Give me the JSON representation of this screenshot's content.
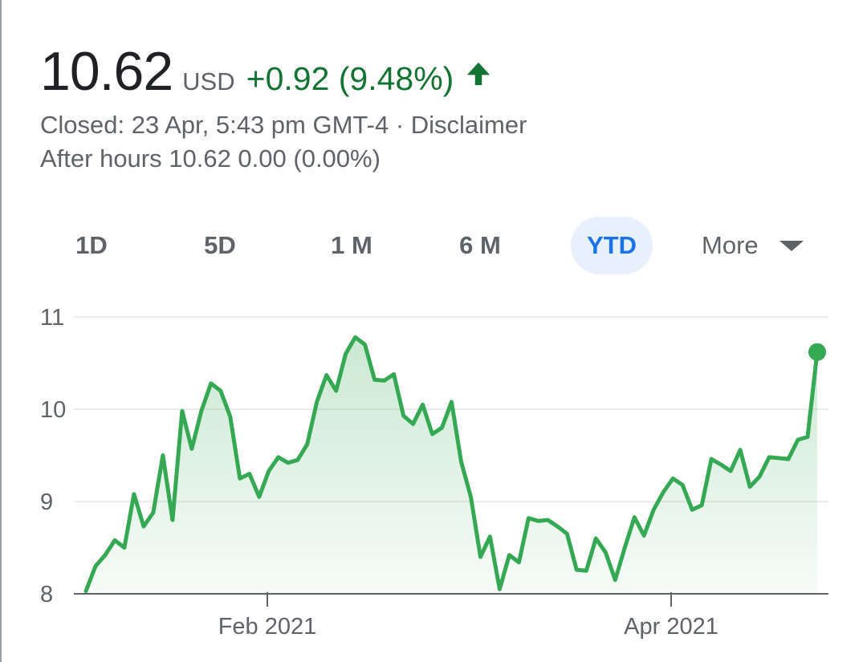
{
  "quote": {
    "price": "10.62",
    "currency": "USD",
    "change": "+0.92 (9.48%)",
    "direction_icon": "arrow-up-icon",
    "status_line": "Closed: 23 Apr, 5:43 pm GMT-4 · Disclaimer",
    "after_hours_line": "After hours 10.62 0.00 (0.00%)"
  },
  "colors": {
    "positive": "#137333",
    "line": "#34a853",
    "active_tab_bg": "#e8f0fe",
    "active_tab_text": "#1a73e8"
  },
  "tabs": [
    {
      "label": "1D",
      "active": false
    },
    {
      "label": "5D",
      "active": false
    },
    {
      "label": "1 M",
      "active": false
    },
    {
      "label": "6 M",
      "active": false
    },
    {
      "label": "YTD",
      "active": true
    }
  ],
  "more_label": "More",
  "more_icon": "caret-down-icon",
  "chart_data": {
    "type": "area",
    "ylim": [
      8,
      11
    ],
    "yticks": [
      "11",
      "10",
      "9",
      "8"
    ],
    "xticks": [
      "Feb 2021",
      "Apr 2021"
    ],
    "grid": true,
    "legend": "none",
    "series": [
      {
        "values": [
          8.03,
          8.3,
          8.42,
          8.58,
          8.5,
          9.08,
          8.73,
          8.88,
          9.5,
          8.8,
          9.98,
          9.57,
          9.98,
          10.28,
          10.2,
          9.92,
          9.25,
          9.3,
          9.05,
          9.33,
          9.48,
          9.42,
          9.45,
          9.62,
          10.08,
          10.37,
          10.2,
          10.6,
          10.78,
          10.7,
          10.32,
          10.31,
          10.38,
          9.93,
          9.84,
          10.05,
          9.73,
          9.8,
          10.08,
          9.43,
          9.05,
          8.4,
          8.62,
          8.05,
          8.42,
          8.34,
          8.82,
          8.79,
          8.8,
          8.73,
          8.65,
          8.26,
          8.25,
          8.6,
          8.45,
          8.15,
          8.5,
          8.83,
          8.63,
          8.91,
          9.1,
          9.25,
          9.18,
          8.91,
          8.96,
          9.46,
          9.4,
          9.33,
          9.56,
          9.16,
          9.27,
          9.48,
          9.47,
          9.46,
          9.67,
          9.7,
          10.62
        ]
      }
    ]
  }
}
